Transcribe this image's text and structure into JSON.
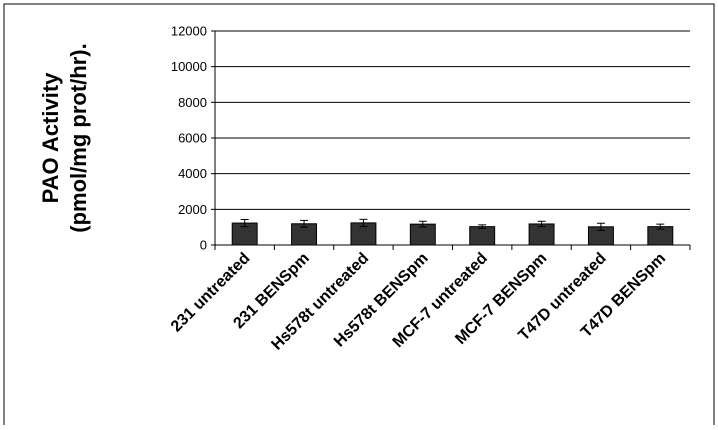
{
  "chart_data": {
    "type": "bar",
    "title": "",
    "ylabel_line1": "PAO Activity",
    "ylabel_line2": "(pmol/mg prot/hr).",
    "xlabel": "",
    "categories": [
      "231 untreated",
      "231 BENSpm",
      "Hs578t untreated",
      "Hs578t BENSpm",
      "MCF-7 untreated",
      "MCF-7 BENSpm",
      "T47D untreated",
      "T47D BENSpm"
    ],
    "values": [
      1230,
      1190,
      1240,
      1170,
      1030,
      1180,
      1020,
      1030
    ],
    "errors": [
      200,
      190,
      200,
      160,
      100,
      150,
      200,
      140
    ],
    "ylim": [
      0,
      12000
    ],
    "yticks": [
      "0",
      "2000",
      "4000",
      "6000",
      "8000",
      "10000",
      "12000"
    ],
    "grid": true,
    "bar_color": "#333333",
    "legend": "none"
  }
}
